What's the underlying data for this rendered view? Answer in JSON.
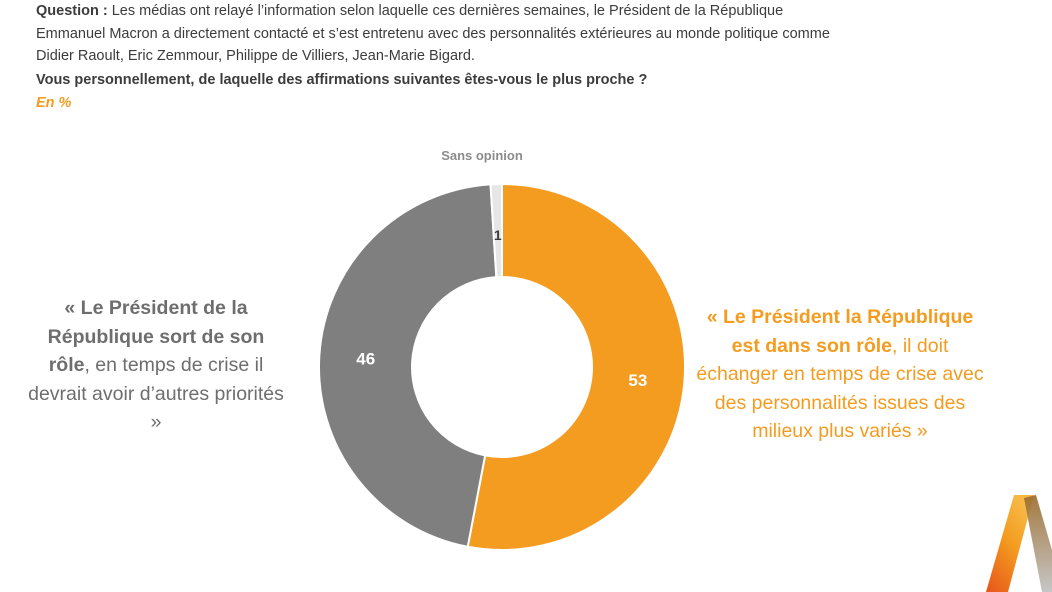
{
  "question": {
    "label": "Question :",
    "text": "Les médias ont relayé l’information selon laquelle ces dernières semaines, le Président de la République Emmanuel Macron a directement contacté et s’est entretenu avec des personnalités extérieures au monde politique comme Didier Raoult, Eric Zemmour, Philippe de Villiers, Jean-Marie Bigard.",
    "line1": "Les médias ont relayé l’information selon laquelle ces dernières semaines, le Président de la République",
    "line2": "Emmanuel Macron a directement contacté et s’est entretenu avec des personnalités extérieures au monde politique comme",
    "line3": "Didier Raoult, Eric Zemmour, Philippe de Villiers, Jean-Marie Bigard.",
    "sub": "Vous personnellement, de laquelle des affirmations suivantes êtes-vous le plus proche ?",
    "unit": "En %"
  },
  "quotes": {
    "left_bold": "« Le Président de la République sort de son rôle",
    "left_rest": ", en temps de crise il devrait avoir d’autres priorités »",
    "right_bold": "« Le Président la République est dans son rôle",
    "right_rest": ", il doit échanger en temps de crise avec des personnalités issues des milieux plus variés »"
  },
  "colors": {
    "orange": "#f39c20",
    "gray": "#7f7f7f",
    "light_gray": "#e6e6e6",
    "text": "#3c3c3c"
  },
  "chart_data": {
    "type": "pie",
    "donut": true,
    "unit": "%",
    "slices": [
      {
        "label": "« Le Président la République est dans son rôle, il doit échanger en temps de crise avec des personnalités issues des milieux plus variés »",
        "value": 53,
        "color": "#f39c20",
        "value_color": "#ffffff"
      },
      {
        "label": "« Le Président de la République sort de son rôle, en temps de crise il devrait avoir d’autres priorités »",
        "value": 46,
        "color": "#7f7f7f",
        "value_color": "#ffffff"
      },
      {
        "label": "Sans opinion",
        "value": 1,
        "color": "#e6e6e6",
        "value_color": "#3c3c3c"
      }
    ],
    "start": "12 o'clock, clockwise",
    "outer_label": "Sans opinion"
  }
}
